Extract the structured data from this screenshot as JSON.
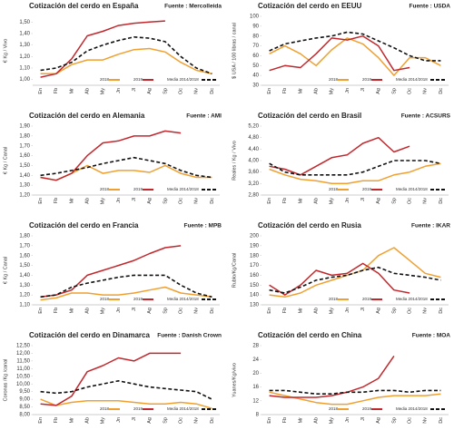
{
  "chart_data": [
    {
      "type": "line",
      "title": "Cotización del cerdo en España",
      "source": "Fuente : Mercolleida",
      "y_label": "€ Kg / Vivo",
      "categories": [
        "En",
        "Fb",
        "Mr",
        "Ab",
        "My",
        "Jn",
        "Jl",
        "Ag",
        "Sp",
        "Oc",
        "Nv",
        "Dc"
      ],
      "ylim": [
        0.95,
        1.55
      ],
      "yticks": [
        {
          "value": 1,
          "label": "1,00"
        },
        {
          "value": 1.1,
          "label": "1,10"
        },
        {
          "value": 1.2,
          "label": "1,20"
        },
        {
          "value": 1.3,
          "label": "1,30"
        },
        {
          "value": 1.4,
          "label": "1,40"
        },
        {
          "value": 1.5,
          "label": "1,50"
        }
      ],
      "grid": false,
      "series": [
        {
          "name": "2018",
          "color": "#f0a030",
          "style": "solid",
          "values": [
            1.05,
            1.05,
            1.13,
            1.17,
            1.17,
            1.22,
            1.26,
            1.27,
            1.24,
            1.15,
            1.08,
            1.05
          ]
        },
        {
          "name": "2019",
          "color": "#c0282d",
          "style": "solid",
          "values": [
            1.02,
            1.05,
            1.18,
            1.38,
            1.42,
            1.47,
            1.49,
            1.5,
            1.51,
            null,
            null,
            null
          ]
        },
        {
          "name": "Media 2014/2018",
          "color": "#111111",
          "style": "dashed",
          "values": [
            1.08,
            1.1,
            1.15,
            1.25,
            1.3,
            1.34,
            1.37,
            1.36,
            1.33,
            1.2,
            1.1,
            1.05
          ]
        }
      ]
    },
    {
      "type": "line",
      "title": "Cotización del cerdo en EEUU",
      "source": "Fuente : USDA",
      "y_label": "$ USA / 100 libras / canal",
      "categories": [
        "En",
        "Fb",
        "Mr",
        "Ab",
        "My",
        "Jn",
        "Jl",
        "Ag",
        "Sp",
        "Oc",
        "Nv",
        "Dc"
      ],
      "ylim": [
        30,
        100
      ],
      "yticks": [
        30,
        40,
        50,
        60,
        70,
        80,
        90,
        100
      ],
      "grid": false,
      "series": [
        {
          "name": "2018",
          "color": "#f0a030",
          "style": "solid",
          "values": [
            62,
            70,
            62,
            50,
            66,
            78,
            72,
            58,
            40,
            58,
            58,
            50
          ]
        },
        {
          "name": "2019",
          "color": "#c0282d",
          "style": "solid",
          "values": [
            45,
            50,
            48,
            62,
            78,
            76,
            80,
            70,
            45,
            48,
            null,
            null
          ]
        },
        {
          "name": "Media 2014/2018",
          "color": "#111111",
          "style": "dashed",
          "values": [
            65,
            72,
            75,
            78,
            80,
            84,
            82,
            75,
            68,
            60,
            55,
            55
          ]
        }
      ]
    },
    {
      "type": "line",
      "title": "Cotización del cerdo en Alemania",
      "source": "Fuente : AMI",
      "y_label": "€ Kg / Canal",
      "categories": [
        "En",
        "Fb",
        "Mr",
        "Ab",
        "My",
        "Jn",
        "Jl",
        "Ag",
        "Sp",
        "Oc",
        "Nv",
        "Dc"
      ],
      "ylim": [
        1.2,
        1.9
      ],
      "yticks": [
        {
          "value": 1.2,
          "label": "1,20"
        },
        {
          "value": 1.3,
          "label": "1,30"
        },
        {
          "value": 1.4,
          "label": "1,40"
        },
        {
          "value": 1.5,
          "label": "1,50"
        },
        {
          "value": 1.6,
          "label": "1,60"
        },
        {
          "value": 1.7,
          "label": "1,70"
        },
        {
          "value": 1.8,
          "label": "1,80"
        },
        {
          "value": 1.9,
          "label": "1,90"
        }
      ],
      "grid": false,
      "series": [
        {
          "name": "2018",
          "color": "#f0a030",
          "style": "solid",
          "values": [
            1.38,
            1.35,
            1.42,
            1.5,
            1.42,
            1.45,
            1.45,
            1.43,
            1.5,
            1.42,
            1.38,
            1.38
          ]
        },
        {
          "name": "2019",
          "color": "#c0282d",
          "style": "solid",
          "values": [
            1.38,
            1.35,
            1.42,
            1.6,
            1.73,
            1.75,
            1.8,
            1.8,
            1.85,
            1.83,
            null,
            null
          ]
        },
        {
          "name": "Media 2014/2018",
          "color": "#111111",
          "style": "dashed",
          "values": [
            1.4,
            1.42,
            1.45,
            1.48,
            1.52,
            1.55,
            1.58,
            1.55,
            1.52,
            1.45,
            1.4,
            1.38
          ]
        }
      ]
    },
    {
      "type": "line",
      "title": "Cotización del cerdo en Brasil",
      "source": "Fuente : ACSURS",
      "y_label": "Reales / Kg / Vivo",
      "categories": [
        "En",
        "Fb",
        "Mr",
        "Ab",
        "My",
        "Jn",
        "Jl",
        "Ag",
        "Sp",
        "Oc",
        "Nv",
        "Dc"
      ],
      "ylim": [
        2.8,
        5.2
      ],
      "yticks": [
        {
          "value": 2.8,
          "label": "2,80"
        },
        {
          "value": 3.2,
          "label": "3,20"
        },
        {
          "value": 3.6,
          "label": "3,60"
        },
        {
          "value": 4,
          "label": "4,00"
        },
        {
          "value": 4.4,
          "label": "4,40"
        },
        {
          "value": 4.8,
          "label": "4,80"
        },
        {
          "value": 5.2,
          "label": "5,20"
        }
      ],
      "grid": false,
      "series": [
        {
          "name": "2018",
          "color": "#f0a030",
          "style": "solid",
          "values": [
            3.7,
            3.5,
            3.35,
            3.3,
            3.2,
            3.2,
            3.3,
            3.3,
            3.5,
            3.6,
            3.8,
            3.9
          ]
        },
        {
          "name": "2019",
          "color": "#c0282d",
          "style": "solid",
          "values": [
            3.8,
            3.7,
            3.5,
            3.8,
            4.1,
            4.2,
            4.6,
            4.8,
            4.3,
            4.5,
            null,
            null
          ]
        },
        {
          "name": "Media 2014/2018",
          "color": "#111111",
          "style": "dashed",
          "values": [
            3.9,
            3.6,
            3.5,
            3.5,
            3.5,
            3.5,
            3.6,
            3.8,
            4,
            4,
            4,
            3.9
          ]
        }
      ]
    },
    {
      "type": "line",
      "title": "Cotización del cerdo en Francia",
      "source": "Fuente : MPB",
      "y_label": "€ Kg / Canal",
      "categories": [
        "En",
        "Fb",
        "Mr",
        "Ab",
        "My",
        "Jn",
        "Jl",
        "Ag",
        "Sp",
        "Oc",
        "Nv",
        "Dc"
      ],
      "ylim": [
        1.1,
        1.8
      ],
      "yticks": [
        {
          "value": 1.1,
          "label": "1,10"
        },
        {
          "value": 1.2,
          "label": "1,20"
        },
        {
          "value": 1.3,
          "label": "1,30"
        },
        {
          "value": 1.4,
          "label": "1,40"
        },
        {
          "value": 1.5,
          "label": "1,50"
        },
        {
          "value": 1.6,
          "label": "1,60"
        },
        {
          "value": 1.7,
          "label": "1,70"
        },
        {
          "value": 1.8,
          "label": "1,80"
        }
      ],
      "grid": false,
      "series": [
        {
          "name": "2018",
          "color": "#f0a030",
          "style": "solid",
          "values": [
            1.15,
            1.17,
            1.22,
            1.22,
            1.2,
            1.2,
            1.22,
            1.25,
            1.28,
            1.22,
            1.2,
            1.18
          ]
        },
        {
          "name": "2019",
          "color": "#c0282d",
          "style": "solid",
          "values": [
            1.18,
            1.2,
            1.25,
            1.4,
            1.45,
            1.5,
            1.55,
            1.62,
            1.68,
            1.7,
            null,
            null
          ]
        },
        {
          "name": "Media 2014/2018",
          "color": "#111111",
          "style": "dashed",
          "values": [
            1.18,
            1.2,
            1.28,
            1.32,
            1.35,
            1.38,
            1.4,
            1.4,
            1.4,
            1.3,
            1.22,
            1.18
          ]
        }
      ]
    },
    {
      "type": "line",
      "title": "Cotización del cerdo en Rusia",
      "source": "Fuente : IKAR",
      "y_label": "Rublo/Kg/Canal",
      "categories": [
        "En",
        "Fb",
        "Mr",
        "Ab",
        "My",
        "Jn",
        "Jl",
        "Ag",
        "Sp",
        "Oc",
        "Nv",
        "Dc"
      ],
      "ylim": [
        130,
        200
      ],
      "yticks": [
        130,
        140,
        150,
        160,
        170,
        180,
        190,
        200
      ],
      "grid": false,
      "series": [
        {
          "name": "2018",
          "color": "#f0a030",
          "style": "solid",
          "values": [
            140,
            138,
            142,
            150,
            155,
            160,
            165,
            180,
            188,
            175,
            162,
            158
          ]
        },
        {
          "name": "2019",
          "color": "#c0282d",
          "style": "solid",
          "values": [
            150,
            140,
            150,
            165,
            160,
            162,
            172,
            162,
            145,
            142,
            null,
            null
          ]
        },
        {
          "name": "Media 2014/2018",
          "color": "#111111",
          "style": "dashed",
          "values": [
            145,
            142,
            148,
            155,
            158,
            160,
            165,
            168,
            162,
            160,
            158,
            155
          ]
        }
      ]
    },
    {
      "type": "line",
      "title": "Cotización del cerdo en Dinamarca",
      "source": "Fuente : Danish Crown",
      "y_label": "Coronas /Kg /canal",
      "categories": [
        "En",
        "Fb",
        "Mr",
        "Ab",
        "My",
        "Jn",
        "Jl",
        "Ag",
        "Sp",
        "Oc",
        "Nv",
        "Dc"
      ],
      "ylim": [
        8,
        12.5
      ],
      "yticks": [
        {
          "value": 8,
          "label": "8,00"
        },
        {
          "value": 8.5,
          "label": "8,50"
        },
        {
          "value": 9,
          "label": "9,00"
        },
        {
          "value": 9.5,
          "label": "9,50"
        },
        {
          "value": 10,
          "label": "10,00"
        },
        {
          "value": 10.5,
          "label": "10,50"
        },
        {
          "value": 11,
          "label": "11,00"
        },
        {
          "value": 11.5,
          "label": "11,50"
        },
        {
          "value": 12,
          "label": "12,00"
        },
        {
          "value": 12.5,
          "label": "12,50"
        }
      ],
      "grid": false,
      "series": [
        {
          "name": "2018",
          "color": "#f0a030",
          "style": "solid",
          "values": [
            9,
            8.6,
            8.8,
            8.9,
            8.9,
            8.9,
            8.8,
            8.7,
            8.7,
            8.8,
            8.7,
            8.4
          ]
        },
        {
          "name": "2019",
          "color": "#c0282d",
          "style": "solid",
          "values": [
            8.7,
            8.6,
            9.2,
            10.8,
            11.2,
            11.7,
            11.5,
            12,
            12,
            12,
            null,
            null
          ]
        },
        {
          "name": "Media 2014/2018",
          "color": "#111111",
          "style": "dashed",
          "values": [
            9.5,
            9.4,
            9.5,
            9.8,
            10,
            10.2,
            10,
            9.8,
            9.7,
            9.6,
            9.5,
            9
          ]
        }
      ]
    },
    {
      "type": "line",
      "title": "Cotización del cerdo en China",
      "source": "Fuente : MOA",
      "y_label": "Yuanes/Kg/vivo",
      "categories": [
        "En",
        "Fb",
        "Mr",
        "Ab",
        "My",
        "Jn",
        "Jl",
        "Ag",
        "Sp",
        "Oc",
        "Nv",
        "Dc"
      ],
      "ylim": [
        8,
        28
      ],
      "yticks": [
        8,
        12,
        16,
        20,
        24,
        28
      ],
      "grid": false,
      "series": [
        {
          "name": "2018",
          "color": "#f0a030",
          "style": "solid",
          "values": [
            14.5,
            13.5,
            12.5,
            11.5,
            11,
            11,
            12,
            13,
            13.5,
            13.5,
            13.5,
            14
          ]
        },
        {
          "name": "2019",
          "color": "#c0282d",
          "style": "solid",
          "values": [
            13.5,
            13,
            13,
            13,
            13.5,
            14.5,
            16,
            18.5,
            25,
            null,
            null,
            null
          ]
        },
        {
          "name": "Media 2014/2018",
          "color": "#111111",
          "style": "dashed",
          "values": [
            15,
            15,
            14.5,
            14,
            14,
            14.5,
            14.5,
            15,
            15,
            14.5,
            15,
            15
          ]
        }
      ]
    }
  ]
}
